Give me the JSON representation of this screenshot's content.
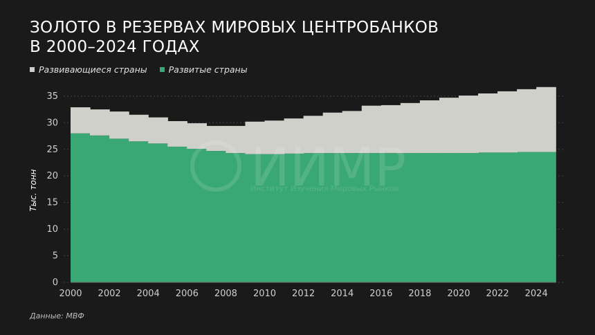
{
  "title_line1": "Золото в резервах мировых центробанков",
  "title_line2": "в 2000–2024 годах",
  "source": "Данные: МВФ",
  "watermark": {
    "logo": "ИИМР",
    "subtitle": "Институт Изучения Мировых Рынков"
  },
  "chart_data": {
    "type": "area",
    "stacked": true,
    "step": true,
    "title": "Золото в резервах мировых центробанков в 2000–2024 годах",
    "xlabel": "",
    "ylabel": "Тыс. тонн",
    "ylim": [
      0,
      35
    ],
    "yticks": [
      0,
      5,
      10,
      15,
      20,
      25,
      30,
      35
    ],
    "xticks": [
      2000,
      2002,
      2004,
      2006,
      2008,
      2010,
      2012,
      2014,
      2016,
      2018,
      2020,
      2022,
      2024
    ],
    "grid": "horizontal dotted",
    "legend_position": "top-left",
    "x": [
      2000,
      2001,
      2002,
      2003,
      2004,
      2005,
      2006,
      2007,
      2008,
      2009,
      2010,
      2011,
      2012,
      2013,
      2014,
      2015,
      2016,
      2017,
      2018,
      2019,
      2020,
      2021,
      2022,
      2023,
      2024
    ],
    "series": [
      {
        "name": "Развитые страны",
        "color": "#3aa874",
        "values": [
          28.0,
          27.6,
          27.0,
          26.5,
          26.1,
          25.5,
          25.1,
          24.7,
          24.3,
          24.1,
          24.1,
          24.2,
          24.3,
          24.3,
          24.3,
          24.3,
          24.3,
          24.3,
          24.3,
          24.3,
          24.3,
          24.4,
          24.4,
          24.5,
          24.5
        ]
      },
      {
        "name": "Развивающиеся страны",
        "color": "#d0d0cb",
        "values": [
          4.9,
          4.9,
          5.1,
          5.0,
          4.9,
          4.8,
          4.8,
          4.7,
          5.1,
          6.1,
          6.3,
          6.6,
          7.0,
          7.6,
          7.9,
          8.9,
          9.0,
          9.4,
          9.9,
          10.4,
          10.8,
          11.1,
          11.5,
          11.8,
          12.2
        ]
      }
    ]
  }
}
